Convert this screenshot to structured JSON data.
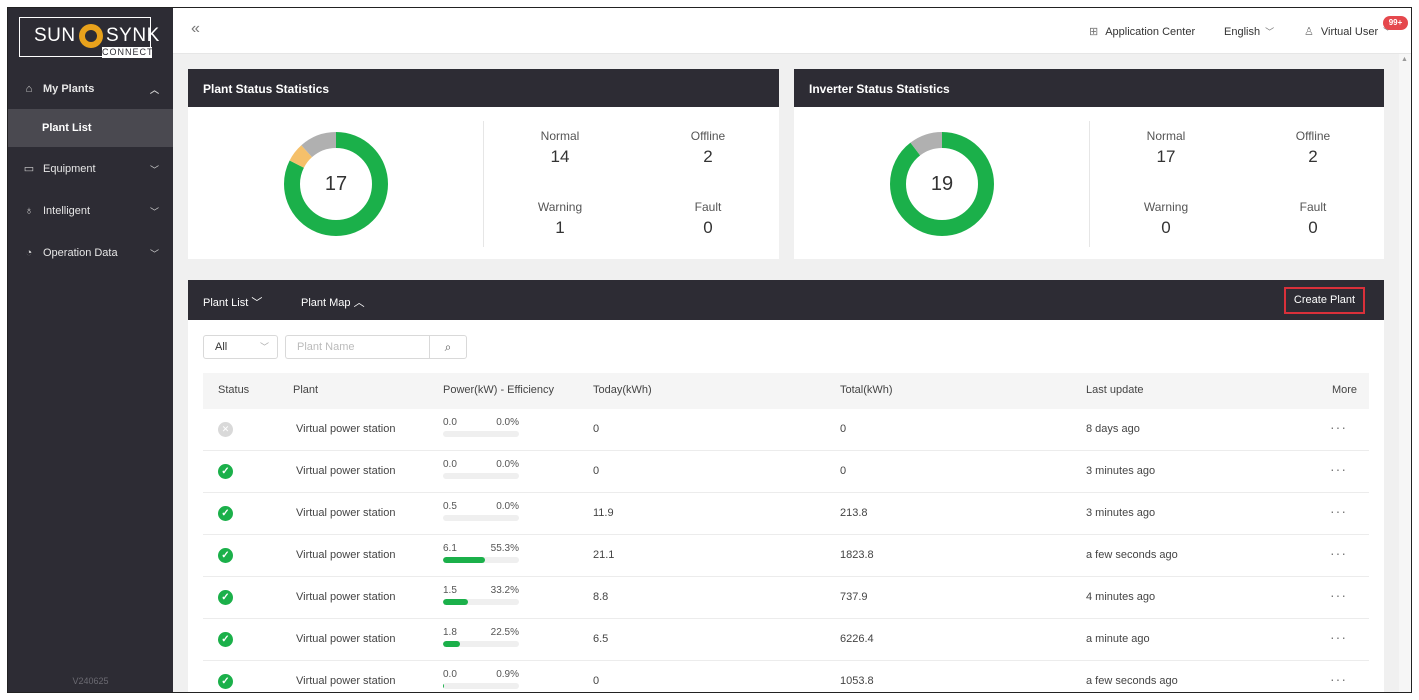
{
  "brand": {
    "left": "SUN",
    "right": "SYNK",
    "sub": "CONNECT"
  },
  "sidebar": {
    "items": [
      {
        "label": "My Plants",
        "icon": "home-icon"
      },
      {
        "label": "Equipment",
        "icon": "equipment-icon"
      },
      {
        "label": "Intelligent",
        "icon": "bulb-icon"
      },
      {
        "label": "Operation Data",
        "icon": "data-icon"
      }
    ],
    "sub_item": "Plant List",
    "version": "V240625"
  },
  "header": {
    "app_center": "Application Center",
    "language": "English",
    "user": "Virtual User",
    "badge": "99+"
  },
  "plant_stats": {
    "title": "Plant Status Statistics",
    "total": "17",
    "normal_label": "Normal",
    "normal": "14",
    "offline_label": "Offline",
    "offline": "2",
    "warning_label": "Warning",
    "warning": "1",
    "fault_label": "Fault",
    "fault": "0"
  },
  "inverter_stats": {
    "title": "Inverter Status Statistics",
    "total": "19",
    "normal_label": "Normal",
    "normal": "17",
    "offline_label": "Offline",
    "offline": "2",
    "warning_label": "Warning",
    "warning": "0",
    "fault_label": "Fault",
    "fault": "0"
  },
  "colors": {
    "normal": "#1bb04a",
    "offline": "#b0b0b0",
    "warning": "#f5c06a",
    "fault": "#e5484d",
    "accent": "#2d2c34"
  },
  "panel": {
    "tab_list": "Plant List",
    "tab_map": "Plant Map",
    "create": "Create Plant",
    "filter": "All",
    "search_placeholder": "Plant Name",
    "columns": [
      "Status",
      "Plant",
      "Power(kW) - Efficiency",
      "Today(kWh)",
      "Total(kWh)",
      "Last update",
      "More"
    ]
  },
  "rows": [
    {
      "status": "offline",
      "plant": "Virtual power station",
      "power": "0.0",
      "efficiency": "0.0%",
      "eff_value": 0.0,
      "today": "0",
      "total": "0",
      "updated": "8 days ago"
    },
    {
      "status": "normal",
      "plant": "Virtual power station",
      "power": "0.0",
      "efficiency": "0.0%",
      "eff_value": 0.0,
      "today": "0",
      "total": "0",
      "updated": "3 minutes ago"
    },
    {
      "status": "normal",
      "plant": "Virtual power station",
      "power": "0.5",
      "efficiency": "0.0%",
      "eff_value": 0.0,
      "today": "11.9",
      "total": "213.8",
      "updated": "3 minutes ago"
    },
    {
      "status": "normal",
      "plant": "Virtual power station",
      "power": "6.1",
      "efficiency": "55.3%",
      "eff_value": 55.3,
      "today": "21.1",
      "total": "1823.8",
      "updated": "a few seconds ago"
    },
    {
      "status": "normal",
      "plant": "Virtual power station",
      "power": "1.5",
      "efficiency": "33.2%",
      "eff_value": 33.2,
      "today": "8.8",
      "total": "737.9",
      "updated": "4 minutes ago"
    },
    {
      "status": "normal",
      "plant": "Virtual power station",
      "power": "1.8",
      "efficiency": "22.5%",
      "eff_value": 22.5,
      "today": "6.5",
      "total": "6226.4",
      "updated": "a minute ago"
    },
    {
      "status": "normal",
      "plant": "Virtual power station",
      "power": "0.0",
      "efficiency": "0.9%",
      "eff_value": 0.9,
      "today": "0",
      "total": "1053.8",
      "updated": "a few seconds ago"
    }
  ]
}
